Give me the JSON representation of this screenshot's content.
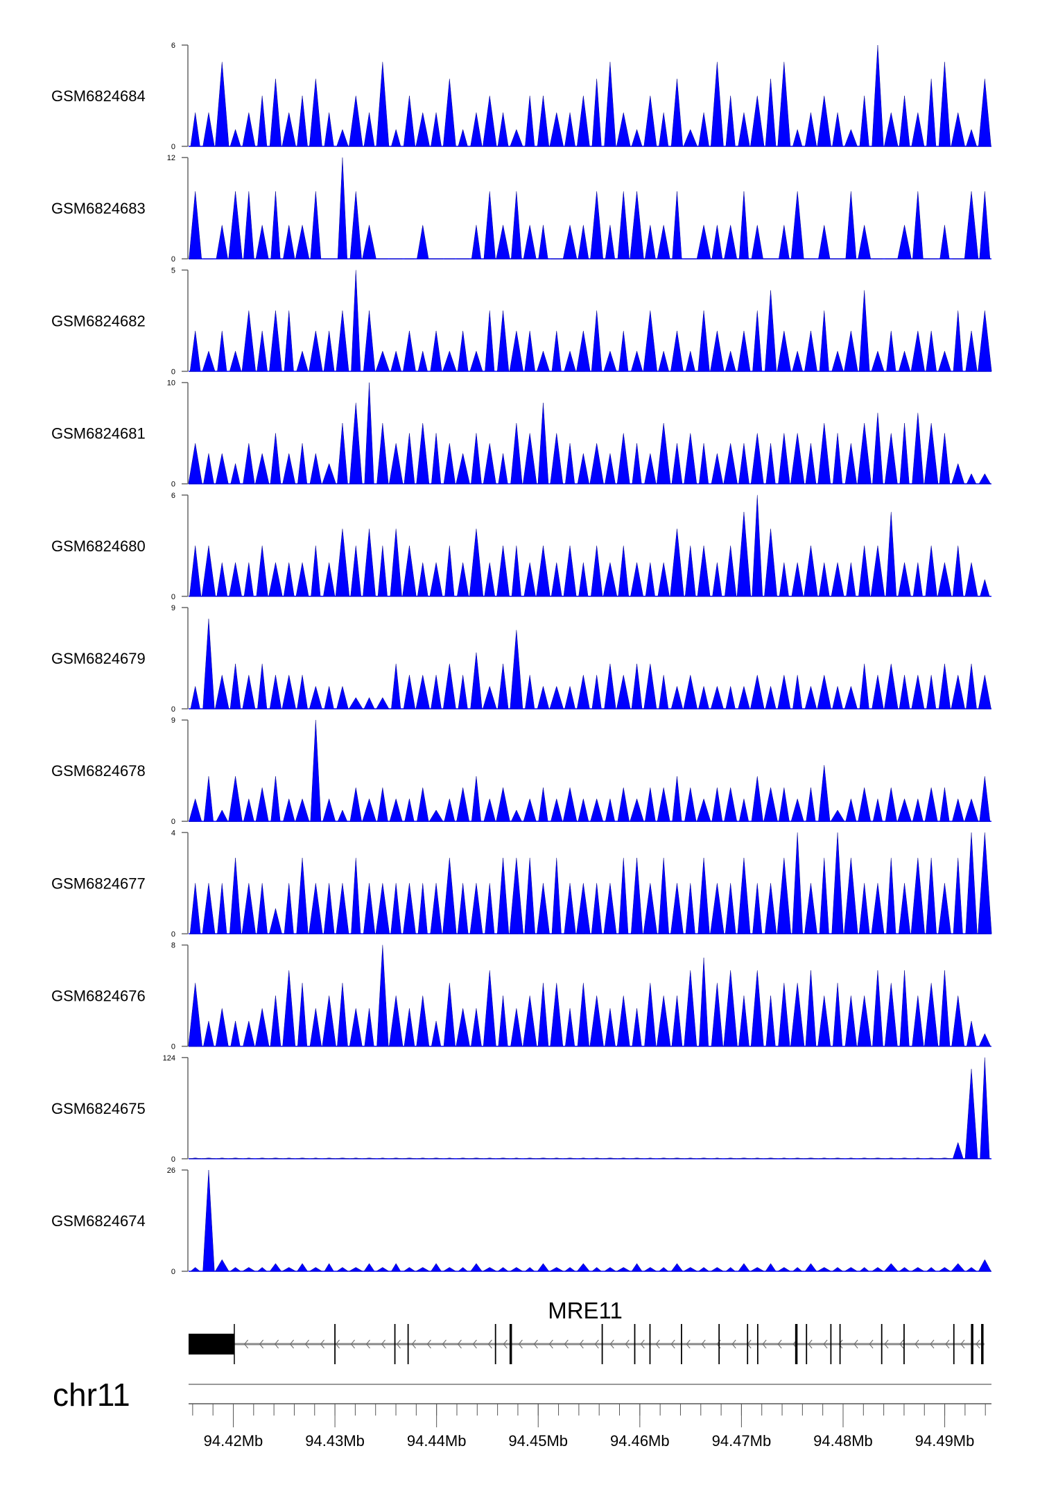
{
  "chart_data": {
    "type": "area",
    "title": "",
    "chromosome": "chr11",
    "xlim_mb": [
      94.4156,
      94.4946
    ],
    "xticks_mb": [
      94.42,
      94.43,
      94.44,
      94.45,
      94.46,
      94.47,
      94.48,
      94.49
    ],
    "xtick_labels": [
      "94.42Mb",
      "94.43Mb",
      "94.44Mb",
      "94.45Mb",
      "94.46Mb",
      "94.47Mb",
      "94.48Mb",
      "94.49Mb"
    ],
    "minor_tick_step_mb": 0.002,
    "minor_tick_range_mb": [
      94.416,
      94.494
    ],
    "fill_color": "#0000ff",
    "bins": 60,
    "series": [
      {
        "name": "GSM6824684",
        "ylim": [
          0,
          6
        ],
        "ytick_labels": [
          "0",
          "6"
        ],
        "values": [
          2,
          2,
          5,
          1,
          2,
          3,
          4,
          2,
          3,
          4,
          2,
          1,
          3,
          2,
          5,
          1,
          3,
          2,
          2,
          4,
          1,
          2,
          3,
          2,
          1,
          3,
          3,
          2,
          2,
          3,
          4,
          5,
          2,
          1,
          3,
          2,
          4,
          1,
          2,
          5,
          3,
          2,
          3,
          4,
          5,
          1,
          2,
          3,
          2,
          1,
          3,
          6,
          2,
          3,
          2,
          4,
          5,
          2,
          1,
          4
        ]
      },
      {
        "name": "GSM6824683",
        "ylim": [
          0,
          12
        ],
        "ytick_labels": [
          "0",
          "12"
        ],
        "values": [
          8,
          0,
          4,
          8,
          8,
          4,
          8,
          4,
          4,
          8,
          0,
          12,
          8,
          4,
          0,
          0,
          0,
          4,
          0,
          0,
          0,
          4,
          8,
          4,
          8,
          4,
          4,
          0,
          4,
          4,
          8,
          4,
          8,
          8,
          4,
          4,
          8,
          0,
          4,
          4,
          4,
          8,
          4,
          0,
          4,
          8,
          0,
          4,
          0,
          8,
          4,
          0,
          0,
          4,
          8,
          0,
          4,
          0,
          8,
          8
        ]
      },
      {
        "name": "GSM6824682",
        "ylim": [
          0,
          5
        ],
        "ytick_labels": [
          "0",
          "5"
        ],
        "values": [
          2,
          1,
          2,
          1,
          3,
          2,
          3,
          3,
          1,
          2,
          2,
          3,
          5,
          3,
          1,
          1,
          2,
          1,
          2,
          1,
          2,
          1,
          3,
          3,
          2,
          2,
          1,
          2,
          1,
          2,
          3,
          1,
          2,
          1,
          3,
          1,
          2,
          1,
          3,
          2,
          1,
          2,
          3,
          4,
          2,
          1,
          2,
          3,
          1,
          2,
          4,
          1,
          2,
          1,
          2,
          2,
          1,
          3,
          2,
          3
        ]
      },
      {
        "name": "GSM6824681",
        "ylim": [
          0,
          10
        ],
        "ytick_labels": [
          "0",
          "10"
        ],
        "values": [
          4,
          3,
          3,
          2,
          4,
          3,
          5,
          3,
          4,
          3,
          2,
          6,
          8,
          10,
          6,
          4,
          5,
          6,
          5,
          4,
          3,
          5,
          4,
          3,
          6,
          5,
          8,
          5,
          4,
          3,
          4,
          3,
          5,
          4,
          3,
          6,
          4,
          5,
          4,
          3,
          4,
          4,
          5,
          4,
          5,
          5,
          4,
          6,
          5,
          4,
          6,
          7,
          5,
          6,
          7,
          6,
          5,
          2,
          1,
          1
        ]
      },
      {
        "name": "GSM6824680",
        "ylim": [
          0,
          6
        ],
        "ytick_labels": [
          "0",
          "6"
        ],
        "values": [
          3,
          3,
          2,
          2,
          2,
          3,
          2,
          2,
          2,
          3,
          2,
          4,
          3,
          4,
          3,
          4,
          3,
          2,
          2,
          3,
          2,
          4,
          2,
          3,
          3,
          2,
          3,
          2,
          3,
          2,
          3,
          2,
          3,
          2,
          2,
          2,
          4,
          3,
          3,
          2,
          3,
          5,
          6,
          4,
          2,
          2,
          3,
          2,
          2,
          2,
          3,
          3,
          5,
          2,
          2,
          3,
          2,
          3,
          2,
          1
        ]
      },
      {
        "name": "GSM6824679",
        "ylim": [
          0,
          9
        ],
        "ytick_labels": [
          "0",
          "9"
        ],
        "values": [
          2,
          8,
          3,
          4,
          3,
          4,
          3,
          3,
          3,
          2,
          2,
          2,
          1,
          1,
          1,
          4,
          3,
          3,
          3,
          4,
          3,
          5,
          2,
          4,
          7,
          3,
          2,
          2,
          2,
          3,
          3,
          4,
          3,
          4,
          4,
          3,
          2,
          3,
          2,
          2,
          2,
          2,
          3,
          2,
          3,
          3,
          2,
          3,
          2,
          2,
          4,
          3,
          4,
          3,
          3,
          3,
          4,
          3,
          4,
          3
        ]
      },
      {
        "name": "GSM6824678",
        "ylim": [
          0,
          9
        ],
        "ytick_labels": [
          "0",
          "9"
        ],
        "values": [
          2,
          4,
          1,
          4,
          2,
          3,
          4,
          2,
          2,
          9,
          2,
          1,
          3,
          2,
          3,
          2,
          2,
          3,
          1,
          2,
          3,
          4,
          2,
          3,
          1,
          2,
          3,
          2,
          3,
          2,
          2,
          2,
          3,
          2,
          3,
          3,
          4,
          3,
          2,
          3,
          3,
          2,
          4,
          3,
          3,
          2,
          3,
          5,
          1,
          2,
          3,
          2,
          3,
          2,
          2,
          3,
          3,
          2,
          2,
          4
        ]
      },
      {
        "name": "GSM6824677",
        "ylim": [
          0,
          4
        ],
        "ytick_labels": [
          "0",
          "4"
        ],
        "values": [
          2,
          2,
          2,
          3,
          2,
          2,
          1,
          2,
          3,
          2,
          2,
          2,
          3,
          2,
          2,
          2,
          2,
          2,
          2,
          3,
          2,
          2,
          2,
          3,
          3,
          3,
          2,
          3,
          2,
          2,
          2,
          2,
          3,
          3,
          2,
          3,
          2,
          2,
          3,
          2,
          2,
          3,
          2,
          2,
          3,
          4,
          2,
          3,
          4,
          3,
          2,
          2,
          3,
          2,
          3,
          3,
          2,
          3,
          4,
          4
        ]
      },
      {
        "name": "GSM6824676",
        "ylim": [
          0,
          8
        ],
        "ytick_labels": [
          "0",
          "8"
        ],
        "values": [
          5,
          2,
          3,
          2,
          2,
          3,
          4,
          6,
          5,
          3,
          4,
          5,
          3,
          3,
          8,
          4,
          3,
          4,
          2,
          5,
          3,
          3,
          6,
          4,
          3,
          4,
          5,
          5,
          3,
          5,
          4,
          3,
          4,
          3,
          5,
          4,
          4,
          6,
          7,
          5,
          6,
          4,
          6,
          4,
          5,
          5,
          6,
          4,
          5,
          4,
          4,
          6,
          5,
          6,
          4,
          5,
          6,
          4,
          2,
          1
        ]
      },
      {
        "name": "GSM6824675",
        "ylim": [
          0,
          124
        ],
        "ytick_labels": [
          "0",
          "124"
        ],
        "values": [
          1,
          1,
          1,
          1,
          1,
          1,
          1,
          1,
          1,
          1,
          1,
          1,
          1,
          1,
          1,
          1,
          1,
          1,
          1,
          1,
          1,
          1,
          1,
          1,
          1,
          1,
          1,
          1,
          1,
          1,
          1,
          1,
          1,
          1,
          1,
          1,
          1,
          1,
          1,
          1,
          1,
          1,
          1,
          1,
          1,
          1,
          1,
          1,
          1,
          1,
          1,
          1,
          1,
          1,
          1,
          1,
          1,
          20,
          110,
          124
        ]
      },
      {
        "name": "GSM6824674",
        "ylim": [
          0,
          26
        ],
        "ytick_labels": [
          "0",
          "26"
        ],
        "values": [
          1,
          26,
          3,
          1,
          1,
          1,
          2,
          1,
          2,
          1,
          2,
          1,
          1,
          2,
          1,
          2,
          1,
          1,
          2,
          1,
          1,
          2,
          1,
          1,
          1,
          1,
          2,
          1,
          1,
          2,
          1,
          1,
          1,
          2,
          1,
          1,
          2,
          1,
          1,
          1,
          1,
          2,
          1,
          2,
          1,
          1,
          2,
          1,
          1,
          1,
          1,
          1,
          2,
          1,
          1,
          1,
          1,
          2,
          1,
          3
        ]
      }
    ],
    "gene_track": {
      "gene_name": "MRE11",
      "strand": "-",
      "span_mb": [
        94.4156,
        94.4939
      ],
      "utr_block_mb": [
        94.4156,
        94.4201
      ],
      "exons_mb": [
        94.43,
        94.4359,
        94.4372,
        94.4458,
        94.4473,
        94.4563,
        94.4595,
        94.461,
        94.4641,
        94.4678,
        94.4706,
        94.4716,
        94.4754,
        94.4764,
        94.4788,
        94.4797,
        94.4838,
        94.486,
        94.4909,
        94.4927,
        94.4937
      ]
    }
  }
}
